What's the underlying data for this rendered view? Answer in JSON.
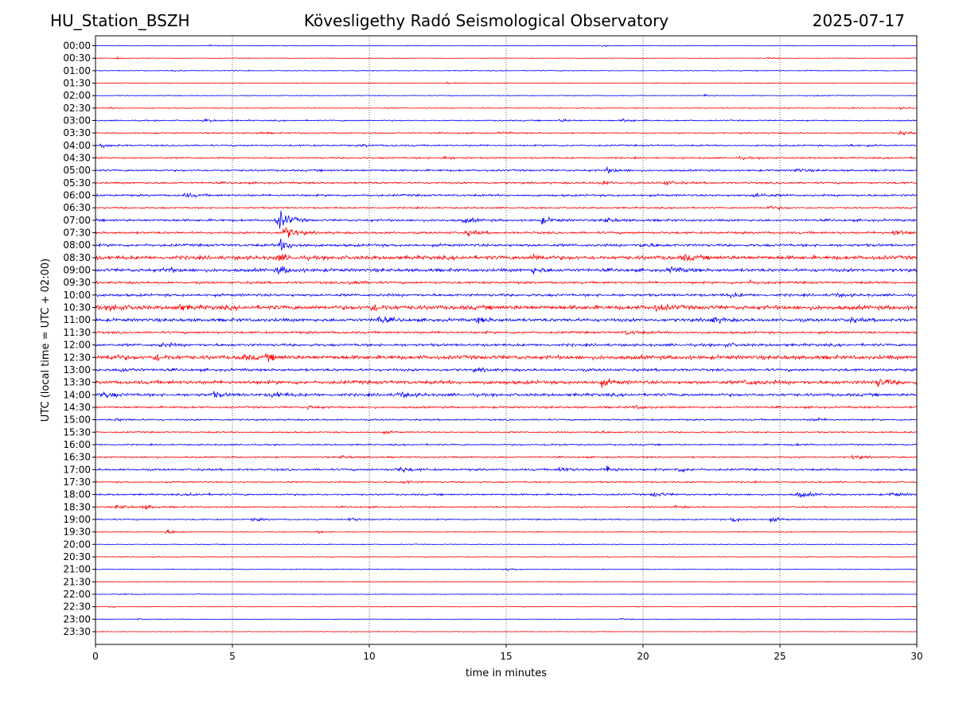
{
  "header": {
    "station": "HU_Station_BSZH",
    "observatory": "Kövesligethy Radó Seismological Observatory",
    "date": "2025-07-17"
  },
  "chart_data": {
    "type": "line",
    "title": "Kövesligethy Radó Seismological Observatory",
    "xlabel": "time in minutes",
    "ylabel": "UTC (local time = UTC + 02:00)",
    "xlim": [
      0,
      30
    ],
    "xticks": [
      0,
      5,
      10,
      15,
      20,
      25,
      30
    ],
    "grid": "vertical dotted lines at 5-minute intervals",
    "series_colors": [
      "#0000ff",
      "#ff0000"
    ],
    "rows": [
      {
        "label": "00:00",
        "noise": 0.4,
        "events": [
          [
            4.2,
            0.8
          ],
          [
            18.5,
            0.6
          ],
          [
            29.1,
            0.9
          ]
        ]
      },
      {
        "label": "00:30",
        "noise": 0.4,
        "events": [
          [
            0.8,
            0.9
          ],
          [
            24.6,
            0.7
          ]
        ]
      },
      {
        "label": "01:00",
        "noise": 0.5,
        "events": [
          [
            2.8,
            0.6
          ],
          [
            26.0,
            0.6
          ]
        ]
      },
      {
        "label": "01:30",
        "noise": 0.5,
        "events": [
          [
            12.8,
            1.0
          ],
          [
            24.4,
            0.7
          ]
        ]
      },
      {
        "label": "02:00",
        "noise": 0.5,
        "events": [
          [
            22.3,
            1.2
          ],
          [
            26.0,
            0.8
          ]
        ]
      },
      {
        "label": "02:30",
        "noise": 0.6,
        "events": [
          [
            0.5,
            0.7
          ],
          [
            29.4,
            1.0
          ]
        ]
      },
      {
        "label": "03:00",
        "noise": 0.8,
        "events": [
          [
            4.0,
            1.6
          ],
          [
            17.0,
            1.5
          ],
          [
            19.3,
            1.8
          ]
        ]
      },
      {
        "label": "03:30",
        "noise": 0.8,
        "events": [
          [
            6.0,
            1.0
          ],
          [
            14.8,
            1.2
          ],
          [
            29.4,
            2.0
          ]
        ]
      },
      {
        "label": "04:00",
        "noise": 1.0,
        "events": [
          [
            0.3,
            2.0
          ],
          [
            9.8,
            1.2
          ],
          [
            27.5,
            1.5
          ]
        ]
      },
      {
        "label": "04:30",
        "noise": 1.0,
        "events": [
          [
            12.7,
            1.8
          ],
          [
            23.5,
            1.2
          ]
        ]
      },
      {
        "label": "05:00",
        "noise": 1.2,
        "events": [
          [
            18.7,
            3.2
          ],
          [
            25.6,
            2.0
          ]
        ]
      },
      {
        "label": "05:30",
        "noise": 1.2,
        "events": [
          [
            18.5,
            2.0
          ],
          [
            20.8,
            2.6
          ]
        ]
      },
      {
        "label": "06:00",
        "noise": 1.3,
        "events": [
          [
            3.3,
            2.4
          ],
          [
            24.1,
            3.2
          ]
        ]
      },
      {
        "label": "06:30",
        "noise": 1.0,
        "events": [
          [
            24.6,
            2.2
          ]
        ]
      },
      {
        "label": "07:00",
        "noise": 1.4,
        "events": [
          [
            6.7,
            12.0
          ],
          [
            13.5,
            3.0
          ],
          [
            16.3,
            4.0
          ],
          [
            18.6,
            3.0
          ]
        ]
      },
      {
        "label": "07:30",
        "noise": 1.4,
        "events": [
          [
            6.9,
            9.0
          ],
          [
            13.6,
            3.0
          ],
          [
            29.2,
            4.0
          ]
        ]
      },
      {
        "label": "08:00",
        "noise": 1.6,
        "events": [
          [
            6.8,
            7.0
          ],
          [
            20.0,
            2.5
          ]
        ]
      },
      {
        "label": "08:30",
        "noise": 2.4,
        "events": [
          [
            6.7,
            3.5
          ],
          [
            16.0,
            3.0
          ],
          [
            21.5,
            3.0
          ]
        ]
      },
      {
        "label": "09:00",
        "noise": 2.0,
        "events": [
          [
            2.6,
            3.0
          ],
          [
            6.7,
            4.5
          ],
          [
            16.0,
            3.5
          ],
          [
            21.0,
            3.5
          ]
        ]
      },
      {
        "label": "09:30",
        "noise": 1.4,
        "events": [
          [
            9.3,
            2.5
          ],
          [
            23.9,
            1.8
          ]
        ]
      },
      {
        "label": "10:00",
        "noise": 1.6,
        "events": [
          [
            23.2,
            2.2
          ],
          [
            27.0,
            1.8
          ]
        ]
      },
      {
        "label": "10:30",
        "noise": 2.6,
        "events": [
          [
            0.6,
            3.5
          ],
          [
            3.0,
            3.5
          ],
          [
            10.1,
            4.0
          ],
          [
            20.5,
            3.0
          ]
        ]
      },
      {
        "label": "11:00",
        "noise": 2.0,
        "events": [
          [
            10.3,
            4.0
          ],
          [
            14.0,
            3.0
          ],
          [
            22.5,
            3.5
          ],
          [
            27.5,
            2.5
          ]
        ]
      },
      {
        "label": "11:30",
        "noise": 1.4,
        "events": [
          [
            19.4,
            2.5
          ]
        ]
      },
      {
        "label": "12:00",
        "noise": 1.6,
        "events": [
          [
            2.4,
            2.0
          ],
          [
            23.0,
            1.8
          ]
        ]
      },
      {
        "label": "12:30",
        "noise": 2.4,
        "events": [
          [
            0.5,
            3.5
          ],
          [
            2.2,
            4.0
          ],
          [
            5.3,
            3.0
          ],
          [
            6.3,
            3.0
          ]
        ]
      },
      {
        "label": "13:00",
        "noise": 1.6,
        "events": [
          [
            0.9,
            2.5
          ],
          [
            13.9,
            2.0
          ]
        ]
      },
      {
        "label": "13:30",
        "noise": 2.2,
        "events": [
          [
            18.5,
            3.5
          ],
          [
            23.8,
            3.5
          ],
          [
            28.6,
            4.5
          ]
        ]
      },
      {
        "label": "14:00",
        "noise": 1.8,
        "events": [
          [
            0.3,
            3.5
          ],
          [
            4.3,
            3.0
          ],
          [
            6.5,
            3.0
          ],
          [
            11.1,
            3.5
          ]
        ]
      },
      {
        "label": "14:30",
        "noise": 1.2,
        "events": [
          [
            7.8,
            1.8
          ],
          [
            19.7,
            2.0
          ]
        ]
      },
      {
        "label": "15:00",
        "noise": 1.0,
        "events": [
          [
            0.8,
            1.5
          ],
          [
            26.2,
            1.8
          ]
        ]
      },
      {
        "label": "15:30",
        "noise": 0.9,
        "events": [
          [
            10.5,
            1.2
          ],
          [
            18.3,
            1.3
          ]
        ]
      },
      {
        "label": "16:00",
        "noise": 0.9,
        "events": [
          [
            16.5,
            1.3
          ],
          [
            25.5,
            1.1
          ]
        ]
      },
      {
        "label": "16:30",
        "noise": 1.0,
        "events": [
          [
            9.0,
            1.5
          ],
          [
            27.7,
            2.5
          ]
        ]
      },
      {
        "label": "17:00",
        "noise": 1.3,
        "events": [
          [
            11.1,
            3.5
          ],
          [
            17.0,
            3.0
          ],
          [
            18.7,
            4.0
          ],
          [
            21.3,
            2.5
          ]
        ]
      },
      {
        "label": "17:30",
        "noise": 0.9,
        "events": [
          [
            11.3,
            2.0
          ]
        ]
      },
      {
        "label": "18:00",
        "noise": 1.1,
        "events": [
          [
            3.5,
            1.8
          ],
          [
            20.4,
            3.0
          ],
          [
            25.7,
            3.5
          ],
          [
            29.1,
            2.5
          ]
        ]
      },
      {
        "label": "18:30",
        "noise": 0.9,
        "events": [
          [
            0.8,
            2.4
          ],
          [
            1.8,
            2.6
          ],
          [
            21.2,
            1.4
          ]
        ]
      },
      {
        "label": "19:00",
        "noise": 0.8,
        "events": [
          [
            5.8,
            1.8
          ],
          [
            9.3,
            2.2
          ],
          [
            23.3,
            3.5
          ],
          [
            24.7,
            2.5
          ]
        ]
      },
      {
        "label": "19:30",
        "noise": 0.6,
        "events": [
          [
            2.6,
            2.6
          ],
          [
            8.1,
            1.2
          ]
        ]
      },
      {
        "label": "20:00",
        "noise": 0.5,
        "events": [
          [
            16.9,
            0.9
          ]
        ]
      },
      {
        "label": "20:30",
        "noise": 0.5,
        "events": []
      },
      {
        "label": "21:00",
        "noise": 0.5,
        "events": [
          [
            15.1,
            1.2
          ]
        ]
      },
      {
        "label": "21:30",
        "noise": 0.45,
        "events": []
      },
      {
        "label": "22:00",
        "noise": 0.45,
        "events": [
          [
            0.9,
            0.8
          ]
        ]
      },
      {
        "label": "22:30",
        "noise": 0.4,
        "events": [
          [
            0.5,
            0.9
          ]
        ]
      },
      {
        "label": "23:00",
        "noise": 0.4,
        "events": [
          [
            1.6,
            0.7
          ],
          [
            19.1,
            0.9
          ]
        ]
      },
      {
        "label": "23:30",
        "noise": 0.35,
        "events": []
      }
    ]
  }
}
